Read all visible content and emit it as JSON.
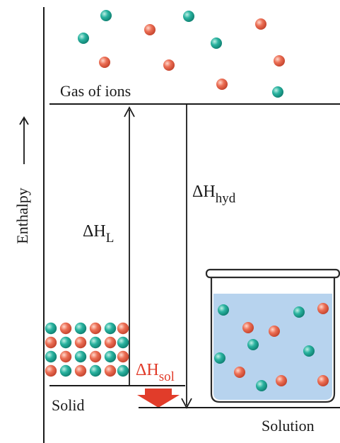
{
  "levels": {
    "gas_label": "Gas of ions",
    "solid_label": "Solid",
    "solution_label": "Solution"
  },
  "axis": {
    "label": "Enthalpy"
  },
  "arrows": {
    "lattice": {
      "symbol": "ΔH",
      "subscript": "L"
    },
    "hydration": {
      "symbol": "ΔH",
      "subscript": "hyd"
    },
    "solution": {
      "symbol": "ΔH",
      "subscript": "sol"
    }
  },
  "colors": {
    "cation": "#2ab3a0",
    "anion": "#ec6f55",
    "water": "#b7d3ee",
    "solution_accent": "#e13c2a",
    "line": "#1a1a1a"
  }
}
